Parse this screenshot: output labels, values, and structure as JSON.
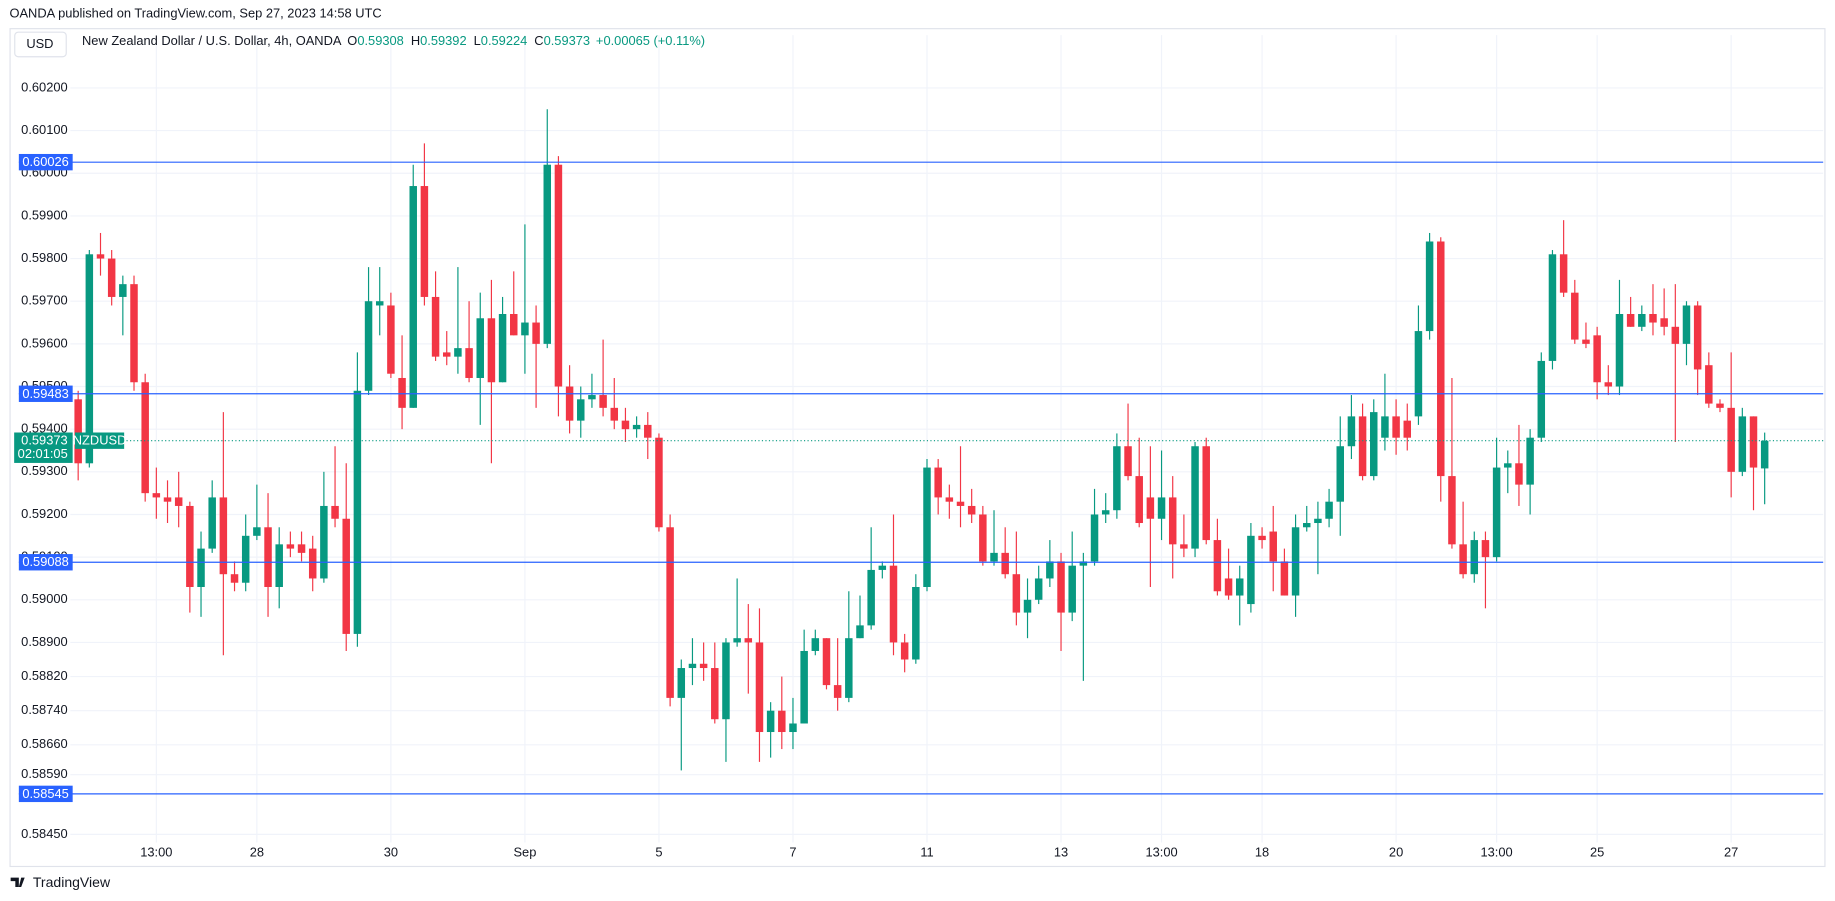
{
  "publisher_line": "OANDA published on TradingView.com, Sep 27, 2023 14:58 UTC",
  "currency": "USD",
  "instrument": "New Zealand Dollar / U.S. Dollar, 4h, OANDA",
  "ohlc_legend": [
    {
      "label": "O",
      "value": 0.59308
    },
    {
      "label": "H",
      "value": 0.59392
    },
    {
      "label": "L",
      "value": 0.59224
    },
    {
      "label": "C",
      "value": 0.59373
    }
  ],
  "change": "+0.00065 (+0.11%)",
  "footer": "TradingView",
  "chart_data": {
    "type": "candlestick",
    "up_color": "#089981",
    "down_color": "#f23645",
    "grid": true,
    "ylim": [
      0.58431,
      0.60269
    ],
    "yticks": [
      {
        "value": 0.602,
        "label": "0.60200"
      },
      {
        "value": 0.601,
        "label": "0.60100"
      },
      {
        "value": 0.6,
        "label": "0.60000"
      },
      {
        "value": 0.599,
        "label": "0.59900"
      },
      {
        "value": 0.598,
        "label": "0.59800"
      },
      {
        "value": 0.597,
        "label": "0.59700"
      },
      {
        "value": 0.596,
        "label": "0.59600"
      },
      {
        "value": 0.595,
        "label": "0.59500"
      },
      {
        "value": 0.594,
        "label": "0.59400"
      },
      {
        "value": 0.593,
        "label": "0.59300"
      },
      {
        "value": 0.592,
        "label": "0.59200"
      },
      {
        "value": 0.591,
        "label": "0.59100"
      },
      {
        "value": 0.59,
        "label": "0.59000"
      },
      {
        "value": 0.589,
        "label": "0.58900"
      },
      {
        "value": 0.5882,
        "label": "0.58820"
      },
      {
        "value": 0.5874,
        "label": "0.58740"
      },
      {
        "value": 0.5866,
        "label": "0.58660"
      },
      {
        "value": 0.5859,
        "label": "0.58590"
      },
      {
        "value": 0.5845,
        "label": "0.58450"
      }
    ],
    "hlines": [
      0.60026,
      0.59483,
      0.59088,
      0.58545
    ],
    "hline_color": "#2962ff",
    "last_price": {
      "value": 0.59373,
      "symbol": "NZDUSD",
      "countdown": "02:01:05"
    },
    "categories": [
      null,
      null,
      null,
      null,
      null,
      null,
      null,
      "13:00",
      null,
      null,
      null,
      null,
      null,
      null,
      null,
      null,
      "28",
      null,
      null,
      null,
      null,
      null,
      null,
      null,
      null,
      null,
      null,
      null,
      "30",
      null,
      null,
      null,
      null,
      null,
      null,
      null,
      null,
      null,
      null,
      null,
      "Sep",
      null,
      null,
      null,
      null,
      null,
      null,
      null,
      null,
      null,
      null,
      null,
      "5",
      null,
      null,
      null,
      null,
      null,
      null,
      null,
      null,
      null,
      null,
      null,
      "7",
      null,
      null,
      null,
      null,
      null,
      null,
      null,
      null,
      null,
      null,
      null,
      "11",
      null,
      null,
      null,
      null,
      null,
      null,
      null,
      null,
      null,
      null,
      null,
      "13",
      null,
      null,
      null,
      null,
      null,
      null,
      null,
      null,
      "13:00",
      null,
      null,
      null,
      null,
      null,
      null,
      null,
      null,
      "18",
      null,
      null,
      null,
      null,
      null,
      null,
      null,
      null,
      null,
      null,
      null,
      "20",
      null,
      null,
      null,
      null,
      null,
      null,
      null,
      null,
      "13:00",
      null,
      null,
      null,
      null,
      null,
      null,
      null,
      null,
      "25",
      null,
      null,
      null,
      null,
      null,
      null,
      null,
      null,
      null,
      null,
      null,
      "27",
      null,
      null,
      null
    ],
    "open": [
      0.5947,
      0.5932,
      0.5981,
      0.598,
      0.5971,
      0.5974,
      0.5951,
      0.5925,
      0.5924,
      0.5924,
      0.5922,
      0.5903,
      0.5912,
      0.5924,
      0.5906,
      0.5904,
      0.5915,
      0.5917,
      0.5903,
      0.5913,
      0.5913,
      0.5912,
      0.5905,
      0.5922,
      0.5919,
      0.5892,
      0.5949,
      0.5969,
      0.5969,
      0.5952,
      0.5945,
      0.5997,
      0.5971,
      0.5958,
      0.5957,
      0.5959,
      0.5952,
      0.5966,
      0.5951,
      0.5967,
      0.5962,
      0.5965,
      0.596,
      0.6002,
      0.595,
      0.5942,
      0.5947,
      0.5948,
      0.5945,
      0.5942,
      0.594,
      0.5941,
      0.5938,
      0.5917,
      0.5877,
      0.5884,
      0.5885,
      0.5884,
      0.5872,
      0.589,
      0.5891,
      0.589,
      0.5869,
      0.5874,
      0.5869,
      0.5871,
      0.5888,
      0.5891,
      0.588,
      0.5877,
      0.5891,
      0.5894,
      0.5907,
      0.5908,
      0.589,
      0.5886,
      0.5903,
      0.5931,
      0.5924,
      0.5923,
      0.5922,
      0.592,
      0.5909,
      0.5911,
      0.5906,
      0.5897,
      0.59,
      0.5905,
      0.5909,
      0.5897,
      0.5908,
      0.5909,
      0.592,
      0.5921,
      0.5936,
      0.5929,
      0.5924,
      0.5919,
      0.5924,
      0.5913,
      0.5912,
      0.5936,
      0.5914,
      0.5905,
      0.5901,
      0.5899,
      0.5915,
      0.5916,
      0.5909,
      0.5901,
      0.5917,
      0.5918,
      0.5919,
      0.5923,
      0.5936,
      0.5943,
      0.5929,
      0.5938,
      0.5943,
      0.5942,
      0.5943,
      0.5963,
      0.5984,
      0.5929,
      0.5913,
      0.5906,
      0.5914,
      0.591,
      0.5931,
      0.5932,
      0.5927,
      0.5938,
      0.5956,
      0.5981,
      0.5972,
      0.5961,
      0.5962,
      0.5951,
      0.595,
      0.5967,
      0.5964,
      0.5967,
      0.5966,
      0.5964,
      0.596,
      0.5969,
      0.5955,
      0.5946,
      0.5945,
      0.593,
      0.5943,
      0.59308
    ],
    "high": [
      0.5949,
      0.5982,
      0.5986,
      0.5982,
      0.5976,
      0.5976,
      0.5953,
      0.5931,
      0.5928,
      0.593,
      0.5923,
      0.5916,
      0.5928,
      0.5944,
      0.5909,
      0.592,
      0.5927,
      0.5925,
      0.5917,
      0.5916,
      0.5916,
      0.5915,
      0.593,
      0.5936,
      0.5932,
      0.5958,
      0.5978,
      0.5978,
      0.5972,
      0.5962,
      0.6002,
      0.6007,
      0.5977,
      0.5963,
      0.5978,
      0.597,
      0.5972,
      0.5975,
      0.5971,
      0.5977,
      0.5988,
      0.5969,
      0.6015,
      0.6004,
      0.5955,
      0.595,
      0.5953,
      0.5961,
      0.5952,
      0.5945,
      0.5943,
      0.5944,
      0.5939,
      0.592,
      0.5886,
      0.5891,
      0.589,
      0.589,
      0.5891,
      0.5905,
      0.5899,
      0.5898,
      0.5876,
      0.5882,
      0.5877,
      0.5893,
      0.5893,
      0.5891,
      0.5891,
      0.5902,
      0.5901,
      0.5917,
      0.5909,
      0.592,
      0.5892,
      0.5906,
      0.5933,
      0.5933,
      0.5927,
      0.5936,
      0.5926,
      0.5922,
      0.5921,
      0.5917,
      0.5916,
      0.5905,
      0.5908,
      0.5914,
      0.5911,
      0.5916,
      0.5911,
      0.5926,
      0.5925,
      0.5939,
      0.5946,
      0.5938,
      0.5936,
      0.5935,
      0.5929,
      0.592,
      0.5937,
      0.5938,
      0.5919,
      0.5912,
      0.5908,
      0.5918,
      0.5917,
      0.5922,
      0.5912,
      0.592,
      0.5922,
      0.5923,
      0.5926,
      0.5943,
      0.5948,
      0.5946,
      0.5947,
      0.5953,
      0.5947,
      0.5946,
      0.5969,
      0.5986,
      0.5985,
      0.5952,
      0.5923,
      0.5916,
      0.5916,
      0.5938,
      0.5935,
      0.5941,
      0.594,
      0.5958,
      0.5982,
      0.5989,
      0.5975,
      0.5965,
      0.5964,
      0.5955,
      0.5975,
      0.5971,
      0.5969,
      0.5974,
      0.5973,
      0.5974,
      0.597,
      0.597,
      0.5958,
      0.5947,
      0.5958,
      0.5945,
      0.5943,
      0.59392
    ],
    "low": [
      0.5928,
      0.5931,
      0.5976,
      0.5969,
      0.5962,
      0.5949,
      0.5923,
      0.5919,
      0.5918,
      0.5917,
      0.5897,
      0.5896,
      0.5911,
      0.5887,
      0.5902,
      0.5902,
      0.5914,
      0.5896,
      0.5898,
      0.591,
      0.5909,
      0.5902,
      0.5904,
      0.5917,
      0.5888,
      0.5889,
      0.5948,
      0.5962,
      0.5952,
      0.594,
      0.5945,
      0.5969,
      0.5956,
      0.5955,
      0.5953,
      0.5951,
      0.5941,
      0.5932,
      0.5951,
      0.5962,
      0.5953,
      0.5945,
      0.5959,
      0.5943,
      0.5939,
      0.5938,
      0.5945,
      0.5943,
      0.594,
      0.5937,
      0.5938,
      0.5933,
      0.5916,
      0.5875,
      0.586,
      0.588,
      0.5881,
      0.5871,
      0.5862,
      0.5889,
      0.5878,
      0.5862,
      0.5863,
      0.5865,
      0.5865,
      0.5871,
      0.5887,
      0.5879,
      0.5874,
      0.5876,
      0.5891,
      0.5893,
      0.5905,
      0.5887,
      0.5883,
      0.5885,
      0.5902,
      0.592,
      0.5919,
      0.5917,
      0.5918,
      0.5908,
      0.5908,
      0.5905,
      0.5894,
      0.5891,
      0.5899,
      0.5903,
      0.5888,
      0.5895,
      0.5881,
      0.5908,
      0.5918,
      0.5919,
      0.5928,
      0.5917,
      0.5903,
      0.5914,
      0.5905,
      0.591,
      0.591,
      0.5913,
      0.5901,
      0.59,
      0.5894,
      0.5897,
      0.5912,
      0.5902,
      0.5901,
      0.5896,
      0.5916,
      0.5906,
      0.5917,
      0.5915,
      0.5933,
      0.5928,
      0.5928,
      0.5935,
      0.5934,
      0.5935,
      0.5941,
      0.5961,
      0.5923,
      0.5912,
      0.5905,
      0.5904,
      0.5898,
      0.5909,
      0.5925,
      0.5922,
      0.592,
      0.5937,
      0.5954,
      0.5971,
      0.596,
      0.5959,
      0.5947,
      0.5948,
      0.5948,
      0.5964,
      0.5963,
      0.5962,
      0.5962,
      0.5937,
      0.5955,
      0.5948,
      0.5945,
      0.5944,
      0.5924,
      0.5929,
      0.5921,
      0.59224
    ],
    "close": [
      0.5932,
      0.5981,
      0.598,
      0.5971,
      0.5974,
      0.5951,
      0.5925,
      0.5924,
      0.5923,
      0.5922,
      0.5903,
      0.5912,
      0.5924,
      0.5906,
      0.5904,
      0.5915,
      0.5917,
      0.5903,
      0.5913,
      0.5912,
      0.5911,
      0.5905,
      0.5922,
      0.5919,
      0.5892,
      0.5949,
      0.597,
      0.597,
      0.5953,
      0.5945,
      0.5997,
      0.5971,
      0.5957,
      0.5957,
      0.5959,
      0.5952,
      0.5966,
      0.5951,
      0.5967,
      0.5962,
      0.5965,
      0.596,
      0.6002,
      0.595,
      0.5942,
      0.5947,
      0.5948,
      0.5945,
      0.5942,
      0.594,
      0.5941,
      0.5938,
      0.5917,
      0.5877,
      0.5884,
      0.5885,
      0.5884,
      0.5872,
      0.589,
      0.5891,
      0.589,
      0.5869,
      0.5874,
      0.5869,
      0.5871,
      0.5888,
      0.5891,
      0.588,
      0.5877,
      0.5891,
      0.5894,
      0.5907,
      0.5908,
      0.589,
      0.5886,
      0.5903,
      0.5931,
      0.5924,
      0.5923,
      0.5922,
      0.592,
      0.5909,
      0.5911,
      0.5906,
      0.5897,
      0.59,
      0.5905,
      0.5909,
      0.5897,
      0.5908,
      0.5909,
      0.592,
      0.5921,
      0.5936,
      0.5929,
      0.5918,
      0.5919,
      0.5924,
      0.5913,
      0.5912,
      0.5936,
      0.5914,
      0.5902,
      0.5901,
      0.5905,
      0.5915,
      0.5914,
      0.5909,
      0.5901,
      0.5917,
      0.5918,
      0.5919,
      0.5923,
      0.5936,
      0.5943,
      0.5929,
      0.5944,
      0.5943,
      0.5938,
      0.5938,
      0.5963,
      0.5984,
      0.5929,
      0.5913,
      0.5906,
      0.5914,
      0.591,
      0.5931,
      0.5932,
      0.5927,
      0.5938,
      0.5956,
      0.5981,
      0.5972,
      0.5961,
      0.596,
      0.5951,
      0.595,
      0.5967,
      0.5964,
      0.5967,
      0.5965,
      0.5964,
      0.596,
      0.5969,
      0.5954,
      0.5946,
      0.5945,
      0.593,
      0.5943,
      0.5931,
      0.59373
    ]
  }
}
